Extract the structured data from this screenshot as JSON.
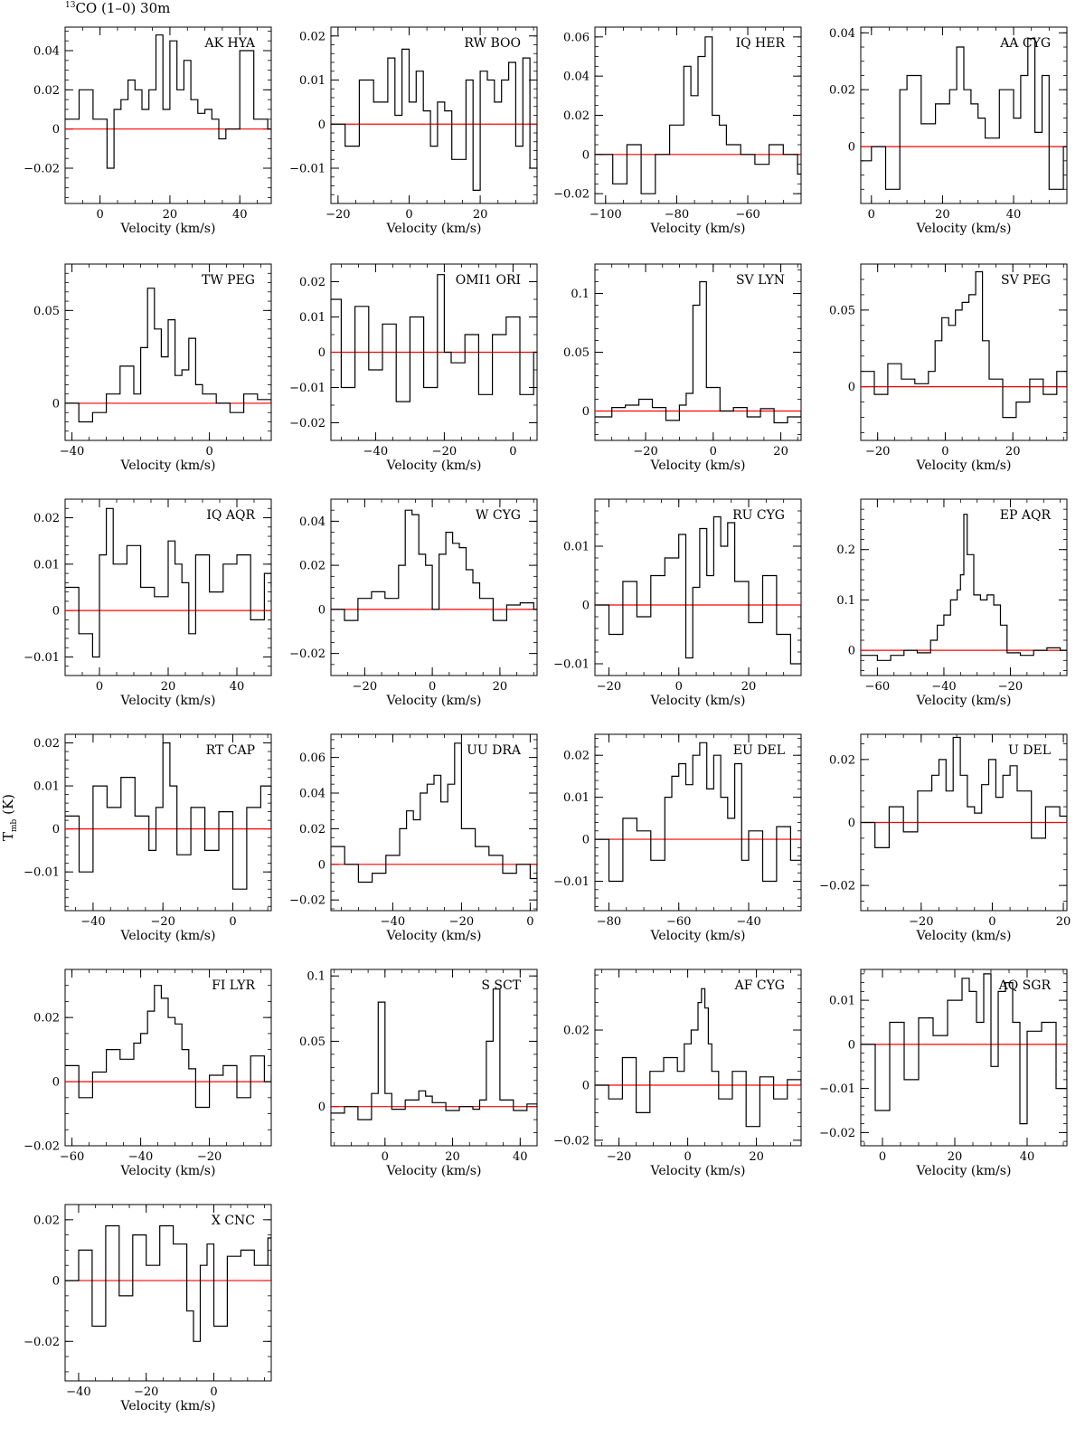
{
  "figure": {
    "title_iso": "13",
    "title_rest": "CO (1–0) 30m",
    "ylabel_main": "T",
    "ylabel_sub": "mb",
    "ylabel_unit": " (K)",
    "xlabel": "Velocity (km/s)"
  },
  "colors": {
    "spectrum": "#000000",
    "baseline": "#ff0000",
    "axes": "#000000"
  },
  "chart_data": [
    {
      "type": "line",
      "step": true,
      "title": "AK HYA",
      "xlim": [
        -10,
        49
      ],
      "ylim": [
        -0.038,
        0.052
      ],
      "xticks": [
        0,
        20,
        40
      ],
      "yticks": [
        -0.02,
        0,
        0.02,
        0.04
      ],
      "x": [
        -10,
        -6,
        -2,
        2,
        4,
        6,
        8,
        10,
        12,
        14,
        16,
        18,
        20,
        22,
        24,
        26,
        28,
        30,
        32,
        34,
        36,
        40,
        44,
        48
      ],
      "y": [
        0.005,
        0.02,
        0.005,
        -0.02,
        0.01,
        0.015,
        0.025,
        0.02,
        0.01,
        0.02,
        0.048,
        0.01,
        0.045,
        0.02,
        0.035,
        0.015,
        0.008,
        0.01,
        0.005,
        -0.005,
        0,
        0.04,
        0.005,
        0
      ]
    },
    {
      "type": "line",
      "step": true,
      "title": "RW BOO",
      "xlim": [
        -22,
        36
      ],
      "ylim": [
        -0.018,
        0.022
      ],
      "xticks": [
        -20,
        0,
        20
      ],
      "yticks": [
        -0.01,
        0,
        0.01,
        0.02
      ],
      "x": [
        -22,
        -18,
        -14,
        -10,
        -6,
        -4,
        -2,
        0,
        2,
        4,
        6,
        8,
        10,
        12,
        16,
        18,
        20,
        22,
        24,
        26,
        28,
        30,
        32,
        34,
        36
      ],
      "y": [
        0,
        -0.005,
        0.01,
        0.005,
        0.015,
        0.002,
        0.017,
        0.005,
        0.012,
        0.003,
        -0.005,
        0.005,
        0.003,
        -0.008,
        0.01,
        -0.015,
        0.012,
        0.01,
        0.005,
        0.01,
        0.014,
        -0.005,
        0.015,
        -0.01,
        0
      ]
    },
    {
      "type": "line",
      "step": true,
      "title": "IQ HER",
      "xlim": [
        -103,
        -45
      ],
      "ylim": [
        -0.025,
        0.065
      ],
      "xticks": [
        -100,
        -80,
        -60
      ],
      "yticks": [
        -0.02,
        0,
        0.02,
        0.04,
        0.06
      ],
      "x": [
        -103,
        -98,
        -94,
        -90,
        -86,
        -82,
        -78,
        -76,
        -74,
        -72,
        -70,
        -68,
        -66,
        -62,
        -58,
        -54,
        -50,
        -46
      ],
      "y": [
        0,
        -0.015,
        0.005,
        -0.02,
        0,
        0.015,
        0.045,
        0.03,
        0.05,
        0.06,
        0.02,
        0.015,
        0.005,
        0,
        -0.005,
        0.005,
        0,
        -0.01
      ]
    },
    {
      "type": "line",
      "step": true,
      "title": "AA CYG",
      "xlim": [
        -3,
        55
      ],
      "ylim": [
        -0.02,
        0.042
      ],
      "xticks": [
        0,
        20,
        40
      ],
      "yticks": [
        0,
        0.02,
        0.04
      ],
      "x": [
        -3,
        0,
        4,
        8,
        10,
        14,
        18,
        22,
        24,
        26,
        28,
        30,
        32,
        36,
        40,
        42,
        44,
        46,
        48,
        50,
        54
      ],
      "y": [
        -0.005,
        0,
        -0.015,
        0.02,
        0.025,
        0.008,
        0.015,
        0.02,
        0.035,
        0.02,
        0.015,
        0.01,
        0.003,
        0.02,
        0.01,
        0.025,
        0.038,
        0.005,
        0.025,
        -0.015,
        0
      ]
    },
    {
      "type": "line",
      "step": true,
      "title": "TW PEG",
      "xlim": [
        -42,
        18
      ],
      "ylim": [
        -0.02,
        0.075
      ],
      "xticks": [
        -40,
        0
      ],
      "yticks": [
        0,
        0.05
      ],
      "x": [
        -42,
        -38,
        -34,
        -30,
        -26,
        -22,
        -20,
        -18,
        -16,
        -14,
        -12,
        -10,
        -8,
        -6,
        -4,
        -2,
        2,
        6,
        10,
        14,
        18
      ],
      "y": [
        0,
        -0.01,
        -0.005,
        0.005,
        0.02,
        0.005,
        0.03,
        0.062,
        0.04,
        0.025,
        0.045,
        0.015,
        0.018,
        0.035,
        0.01,
        0.005,
        0,
        -0.005,
        0.005,
        0.002,
        0
      ]
    },
    {
      "type": "line",
      "step": true,
      "title": "OMI1 ORI",
      "xlim": [
        -53,
        7
      ],
      "ylim": [
        -0.025,
        0.025
      ],
      "xticks": [
        -40,
        -20,
        0
      ],
      "yticks": [
        -0.02,
        -0.01,
        0,
        0.01,
        0.02
      ],
      "x": [
        -53,
        -50,
        -46,
        -42,
        -38,
        -34,
        -30,
        -26,
        -22,
        -20,
        -18,
        -14,
        -10,
        -6,
        -2,
        2,
        6
      ],
      "y": [
        0.015,
        -0.01,
        0.013,
        -0.005,
        0.008,
        -0.014,
        0.01,
        -0.01,
        0.022,
        0,
        -0.003,
        0.005,
        -0.012,
        0.005,
        0.01,
        -0.012,
        0
      ]
    },
    {
      "type": "line",
      "step": true,
      "title": "SV LYN",
      "xlim": [
        -35,
        26
      ],
      "ylim": [
        -0.025,
        0.125
      ],
      "xticks": [
        -20,
        0,
        20
      ],
      "yticks": [
        0,
        0.05,
        0.1
      ],
      "x": [
        -35,
        -30,
        -26,
        -22,
        -18,
        -14,
        -10,
        -8,
        -6,
        -4,
        -2,
        2,
        6,
        10,
        14,
        18,
        22,
        26
      ],
      "y": [
        -0.005,
        0.003,
        0.005,
        0.01,
        0.003,
        -0.008,
        0.005,
        0.015,
        0.09,
        0.11,
        0.02,
        0,
        0.003,
        -0.005,
        0.002,
        -0.01,
        -0.005,
        0
      ]
    },
    {
      "type": "line",
      "step": true,
      "title": "SV PEG",
      "xlim": [
        -25,
        36
      ],
      "ylim": [
        -0.035,
        0.08
      ],
      "xticks": [
        -20,
        0,
        20
      ],
      "yticks": [
        0,
        0.05
      ],
      "x": [
        -25,
        -21,
        -17,
        -13,
        -9,
        -5,
        -3,
        -1,
        1,
        3,
        5,
        7,
        9,
        11,
        13,
        17,
        21,
        25,
        29,
        33,
        36
      ],
      "y": [
        0.01,
        -0.005,
        0.015,
        0.005,
        0.002,
        0.01,
        0.03,
        0.045,
        0.04,
        0.05,
        0.055,
        0.06,
        0.075,
        0.03,
        0.005,
        -0.02,
        -0.01,
        0.005,
        -0.005,
        0.01,
        0
      ]
    },
    {
      "type": "line",
      "step": true,
      "title": "IQ AQR",
      "xlim": [
        -10,
        50
      ],
      "ylim": [
        -0.014,
        0.024
      ],
      "xticks": [
        0,
        20,
        40
      ],
      "yticks": [
        -0.01,
        0,
        0.01,
        0.02
      ],
      "x": [
        -10,
        -6,
        -2,
        0,
        2,
        4,
        8,
        12,
        16,
        20,
        22,
        24,
        26,
        28,
        32,
        36,
        40,
        44,
        48,
        50
      ],
      "y": [
        0.005,
        -0.005,
        -0.01,
        0.012,
        0.022,
        0.01,
        0.014,
        0.005,
        0.003,
        0.015,
        0.01,
        0.006,
        -0.005,
        0.012,
        0.004,
        0.01,
        0.012,
        -0.002,
        0.008,
        0.005
      ]
    },
    {
      "type": "line",
      "step": true,
      "title": "W CYG",
      "xlim": [
        -30,
        31
      ],
      "ylim": [
        -0.03,
        0.05
      ],
      "xticks": [
        -20,
        0,
        20
      ],
      "yticks": [
        -0.02,
        0,
        0.02,
        0.04
      ],
      "x": [
        -30,
        -26,
        -22,
        -18,
        -14,
        -10,
        -8,
        -6,
        -4,
        -2,
        0,
        2,
        4,
        6,
        8,
        10,
        12,
        14,
        18,
        22,
        26,
        30
      ],
      "y": [
        0,
        -0.005,
        0.005,
        0.008,
        0.005,
        0.02,
        0.045,
        0.043,
        0.025,
        0.02,
        0,
        0.025,
        0.035,
        0.03,
        0.028,
        0.018,
        0.012,
        0.005,
        -0.005,
        0.002,
        0.003,
        0
      ]
    },
    {
      "type": "line",
      "step": true,
      "title": "RU CYG",
      "xlim": [
        -24,
        35
      ],
      "ylim": [
        -0.012,
        0.018
      ],
      "xticks": [
        -20,
        0,
        20
      ],
      "yticks": [
        -0.01,
        0,
        0.01
      ],
      "x": [
        -24,
        -20,
        -16,
        -12,
        -8,
        -4,
        0,
        2,
        4,
        6,
        8,
        10,
        12,
        14,
        16,
        20,
        24,
        28,
        32,
        35
      ],
      "y": [
        0,
        -0.005,
        0.004,
        -0.002,
        0.005,
        0.008,
        0.012,
        -0.009,
        0.003,
        0.013,
        0.005,
        0.015,
        0.01,
        0.014,
        0.004,
        -0.003,
        0.005,
        -0.005,
        -0.01,
        0
      ]
    },
    {
      "type": "line",
      "step": true,
      "title": "EP AQR",
      "xlim": [
        -65,
        -3
      ],
      "ylim": [
        -0.05,
        0.3
      ],
      "xticks": [
        -60,
        -40,
        -20
      ],
      "yticks": [
        0,
        0.1,
        0.2
      ],
      "x": [
        -65,
        -60,
        -56,
        -52,
        -48,
        -44,
        -42,
        -40,
        -38,
        -36,
        -35,
        -34,
        -33,
        -31,
        -29,
        -27,
        -25,
        -23,
        -21,
        -17,
        -13,
        -9,
        -5
      ],
      "y": [
        -0.01,
        -0.02,
        -0.01,
        0,
        -0.005,
        0.02,
        0.05,
        0.07,
        0.1,
        0.12,
        0.15,
        0.27,
        0.19,
        0.11,
        0.1,
        0.11,
        0.09,
        0.05,
        -0.005,
        -0.01,
        0,
        0.005,
        0
      ]
    },
    {
      "type": "line",
      "step": true,
      "title": "RT CAP",
      "xlim": [
        -48,
        11
      ],
      "ylim": [
        -0.019,
        0.022
      ],
      "xticks": [
        -40,
        -20,
        0
      ],
      "yticks": [
        -0.01,
        0,
        0.01,
        0.02
      ],
      "x": [
        -48,
        -44,
        -40,
        -36,
        -32,
        -28,
        -24,
        -22,
        -20,
        -18,
        -16,
        -12,
        -8,
        -4,
        0,
        4,
        8,
        11
      ],
      "y": [
        0.003,
        -0.01,
        0.01,
        0.005,
        0.012,
        0.003,
        -0.005,
        0.005,
        0.02,
        0.01,
        -0.006,
        0.005,
        -0.005,
        0.004,
        -0.014,
        0.005,
        0.01,
        0
      ]
    },
    {
      "type": "line",
      "step": true,
      "title": "UU DRA",
      "xlim": [
        -58,
        2
      ],
      "ylim": [
        -0.026,
        0.073
      ],
      "xticks": [
        -40,
        -20,
        0
      ],
      "yticks": [
        -0.02,
        0,
        0.02,
        0.04,
        0.06
      ],
      "x": [
        -58,
        -54,
        -50,
        -46,
        -42,
        -38,
        -36,
        -34,
        -32,
        -30,
        -28,
        -26,
        -24,
        -22,
        -20,
        -16,
        -12,
        -8,
        -4,
        0,
        2
      ],
      "y": [
        0.01,
        0,
        -0.01,
        -0.005,
        0.005,
        0.02,
        0.03,
        0.025,
        0.04,
        0.045,
        0.05,
        0.035,
        0.045,
        0.068,
        0.02,
        0.01,
        0.005,
        -0.005,
        0,
        -0.008,
        0
      ]
    },
    {
      "type": "line",
      "step": true,
      "title": "EU DEL",
      "xlim": [
        -84,
        -25
      ],
      "ylim": [
        -0.017,
        0.025
      ],
      "xticks": [
        -80,
        -60,
        -40
      ],
      "yticks": [
        -0.01,
        0,
        0.01,
        0.02
      ],
      "x": [
        -84,
        -80,
        -76,
        -72,
        -68,
        -64,
        -62,
        -60,
        -58,
        -56,
        -54,
        -52,
        -50,
        -48,
        -46,
        -44,
        -42,
        -40,
        -36,
        -32,
        -28,
        -25
      ],
      "y": [
        0,
        -0.01,
        0.005,
        0.002,
        -0.005,
        0.01,
        0.015,
        0.018,
        0.013,
        0.02,
        0.023,
        0.012,
        0.02,
        0.01,
        0.005,
        0.018,
        -0.005,
        0.002,
        -0.01,
        0.003,
        -0.005,
        0
      ]
    },
    {
      "type": "line",
      "step": true,
      "title": "U DEL",
      "xlim": [
        -37,
        21
      ],
      "ylim": [
        -0.028,
        0.028
      ],
      "xticks": [
        -20,
        0,
        20
      ],
      "yticks": [
        -0.02,
        0,
        0.02
      ],
      "x": [
        -37,
        -33,
        -29,
        -25,
        -21,
        -17,
        -15,
        -13,
        -11,
        -9,
        -7,
        -5,
        -3,
        -1,
        1,
        3,
        5,
        7,
        11,
        15,
        19,
        21
      ],
      "y": [
        0,
        -0.008,
        0.005,
        -0.003,
        0.01,
        0.015,
        0.02,
        0.01,
        0.027,
        0.015,
        0.005,
        0.003,
        0.012,
        0.02,
        0.008,
        0.015,
        0.018,
        0.01,
        -0.005,
        0.005,
        0.002,
        0
      ]
    },
    {
      "type": "line",
      "step": true,
      "title": "FI LYR",
      "xlim": [
        -62,
        -2
      ],
      "ylim": [
        -0.02,
        0.035
      ],
      "xticks": [
        -60,
        -40,
        -20
      ],
      "yticks": [
        -0.02,
        0,
        0.02
      ],
      "x": [
        -62,
        -58,
        -54,
        -50,
        -46,
        -42,
        -40,
        -38,
        -36,
        -34,
        -32,
        -30,
        -28,
        -26,
        -24,
        -20,
        -16,
        -12,
        -8,
        -4,
        -2
      ],
      "y": [
        0.005,
        -0.005,
        0.003,
        0.01,
        0.007,
        0.012,
        0.015,
        0.022,
        0.03,
        0.026,
        0.02,
        0.018,
        0.01,
        0.004,
        -0.008,
        0.002,
        0.005,
        -0.005,
        0.008,
        0,
        0.002
      ]
    },
    {
      "type": "line",
      "step": true,
      "title": "S SCT",
      "xlim": [
        -16,
        45
      ],
      "ylim": [
        -0.03,
        0.105
      ],
      "xticks": [
        0,
        20,
        40
      ],
      "yticks": [
        0,
        0.05,
        0.1
      ],
      "x": [
        -16,
        -12,
        -8,
        -4,
        -2,
        0,
        2,
        6,
        10,
        12,
        14,
        18,
        22,
        26,
        28,
        30,
        32,
        34,
        38,
        42,
        45
      ],
      "y": [
        -0.005,
        0,
        -0.01,
        0.01,
        0.08,
        0.01,
        -0.002,
        0.005,
        0.012,
        0.008,
        0.003,
        -0.003,
        0,
        -0.002,
        0.005,
        0.05,
        0.09,
        0.005,
        -0.003,
        0.002,
        0
      ]
    },
    {
      "type": "line",
      "step": true,
      "title": "AF CYG",
      "xlim": [
        -27,
        33
      ],
      "ylim": [
        -0.022,
        0.042
      ],
      "xticks": [
        -20,
        0,
        20
      ],
      "yticks": [
        -0.02,
        0,
        0.02
      ],
      "x": [
        -27,
        -23,
        -19,
        -15,
        -11,
        -7,
        -3,
        -1,
        1,
        3,
        4,
        5,
        6,
        7,
        9,
        13,
        17,
        21,
        25,
        29,
        33
      ],
      "y": [
        0,
        -0.005,
        0.01,
        -0.01,
        0.005,
        0.01,
        0.005,
        0.015,
        0.02,
        0.03,
        0.035,
        0.028,
        0.015,
        0.005,
        -0.005,
        0.005,
        -0.015,
        0.003,
        -0.005,
        0.002,
        0
      ]
    },
    {
      "type": "line",
      "step": true,
      "title": "AQ SGR",
      "xlim": [
        -6,
        51
      ],
      "ylim": [
        -0.023,
        0.017
      ],
      "xticks": [
        0,
        20,
        40
      ],
      "yticks": [
        -0.02,
        -0.01,
        0,
        0.01
      ],
      "x": [
        -6,
        -2,
        2,
        6,
        10,
        14,
        18,
        22,
        24,
        26,
        28,
        30,
        32,
        34,
        36,
        38,
        40,
        44,
        48,
        51
      ],
      "y": [
        0,
        -0.015,
        0.005,
        -0.008,
        0.006,
        0.002,
        0.01,
        0.015,
        0.012,
        0.005,
        0.016,
        -0.005,
        0.012,
        0.014,
        0.005,
        -0.018,
        0.003,
        0.005,
        -0.01,
        0
      ]
    },
    {
      "type": "line",
      "step": true,
      "title": "X CNC",
      "xlim": [
        -44,
        17
      ],
      "ylim": [
        -0.033,
        0.025
      ],
      "xticks": [
        -40,
        -20,
        0
      ],
      "yticks": [
        -0.02,
        0,
        0.02
      ],
      "x": [
        -44,
        -40,
        -36,
        -32,
        -28,
        -24,
        -20,
        -16,
        -12,
        -8,
        -6,
        -4,
        -2,
        0,
        4,
        8,
        12,
        16,
        17
      ],
      "y": [
        0,
        0.01,
        -0.015,
        0.018,
        -0.005,
        0.015,
        0.005,
        0.018,
        0.012,
        -0.01,
        -0.02,
        0.005,
        0.012,
        -0.015,
        0.008,
        0.01,
        0.005,
        0.014,
        0
      ]
    }
  ]
}
